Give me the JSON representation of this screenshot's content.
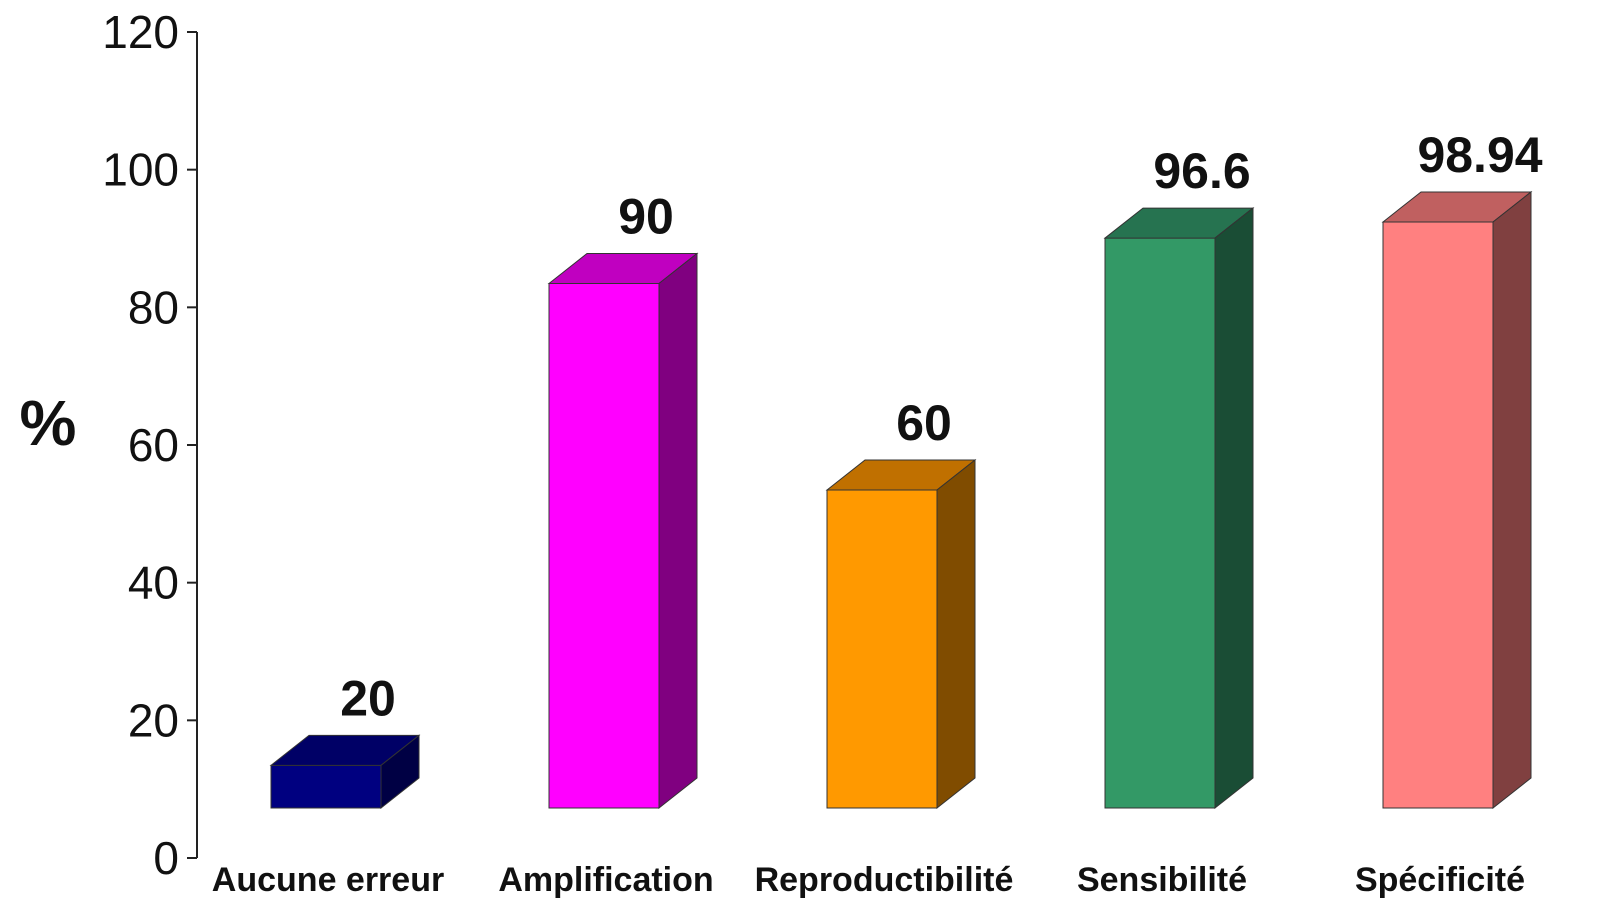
{
  "chart_data": {
    "type": "bar",
    "title": "",
    "xlabel": "",
    "ylabel": "%",
    "ylim": [
      0,
      120
    ],
    "yticks": [
      0,
      20,
      40,
      60,
      80,
      100,
      120
    ],
    "grid": false,
    "legend": "none",
    "three_d": true,
    "categories": [
      "Aucune erreur",
      "Amplification",
      "Reproductibilité",
      "Sensibilité",
      "Spécificité"
    ],
    "values": [
      20,
      90,
      60,
      96.6,
      98.94
    ],
    "value_labels": [
      "20",
      "90",
      "60",
      "96.6",
      "98.94"
    ],
    "colors": {
      "front": [
        "#000080",
        "#ff00ff",
        "#ff9900",
        "#339966",
        "#ff8080"
      ],
      "top": [
        "#000066",
        "#c000c0",
        "#c07000",
        "#267350",
        "#c06060"
      ],
      "side": [
        "#000044",
        "#800080",
        "#804c00",
        "#1a4d35",
        "#804040"
      ]
    }
  }
}
